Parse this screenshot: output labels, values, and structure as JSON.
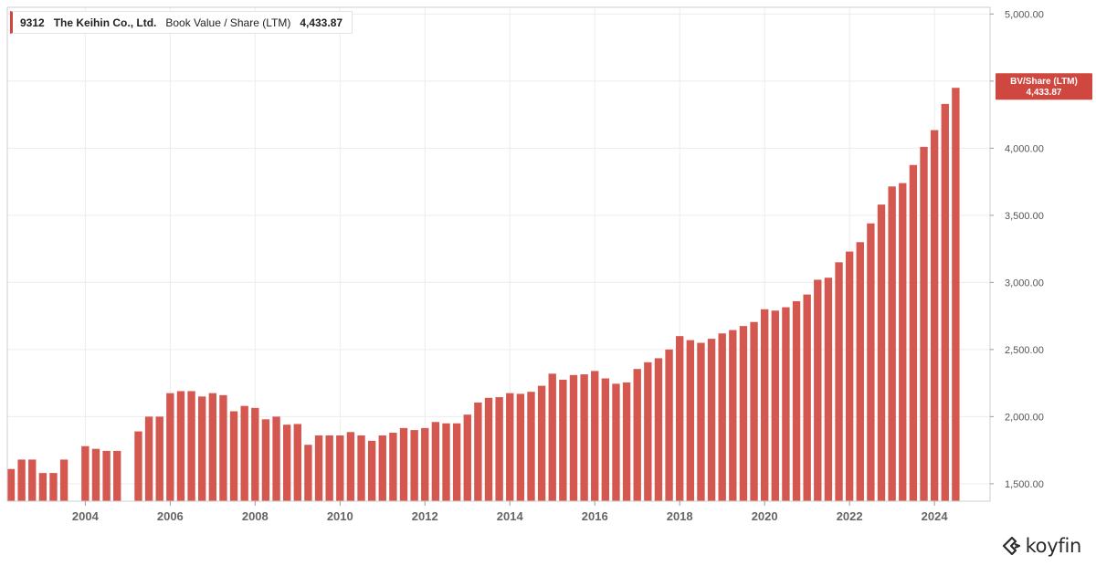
{
  "legend": {
    "ticker": "9312",
    "company": "The Keihin Co., Ltd.",
    "metric": "Book Value / Share (LTM)",
    "value": "4,433.87"
  },
  "last_value_tag": {
    "label": "BV/Share (LTM)",
    "value": "4,433.87"
  },
  "brand": {
    "name": "koyfin"
  },
  "colors": {
    "bar": "#d45850",
    "tag": "#d0473f",
    "grid": "#ececec"
  },
  "chart_data": {
    "type": "bar",
    "title": "",
    "xlabel": "",
    "ylabel": "",
    "ylim": [
      1370,
      5050
    ],
    "xlim": [
      2002.25,
      2024.75
    ],
    "grid": true,
    "x_ticks": [
      "2004",
      "2006",
      "2008",
      "2010",
      "2012",
      "2014",
      "2016",
      "2018",
      "2020",
      "2022",
      "2024"
    ],
    "y_ticks": [
      "1,500.00",
      "2,000.00",
      "2,500.00",
      "3,000.00",
      "3,500.00",
      "4,000.00",
      "4,500.00",
      "5,000.00"
    ],
    "series": [
      {
        "name": "BV/Share (LTM)",
        "x": [
          2002.25,
          2002.5,
          2002.75,
          2003.0,
          2003.25,
          2003.5,
          2003.75,
          2004.0,
          2004.25,
          2004.5,
          2004.75,
          2005.0,
          2005.25,
          2005.5,
          2005.75,
          2006.0,
          2006.25,
          2006.5,
          2006.75,
          2007.0,
          2007.25,
          2007.5,
          2007.75,
          2008.0,
          2008.25,
          2008.5,
          2008.75,
          2009.0,
          2009.25,
          2009.5,
          2009.75,
          2010.0,
          2010.25,
          2010.5,
          2010.75,
          2011.0,
          2011.25,
          2011.5,
          2011.75,
          2012.0,
          2012.25,
          2012.5,
          2012.75,
          2013.0,
          2013.25,
          2013.5,
          2013.75,
          2014.0,
          2014.25,
          2014.5,
          2014.75,
          2015.0,
          2015.25,
          2015.5,
          2015.75,
          2016.0,
          2016.25,
          2016.5,
          2016.75,
          2017.0,
          2017.25,
          2017.5,
          2017.75,
          2018.0,
          2018.25,
          2018.5,
          2018.75,
          2019.0,
          2019.25,
          2019.5,
          2019.75,
          2020.0,
          2020.25,
          2020.5,
          2020.75,
          2021.0,
          2021.25,
          2021.5,
          2021.75,
          2022.0,
          2022.25,
          2022.5,
          2022.75,
          2023.0,
          2023.25,
          2023.5,
          2023.75,
          2024.0,
          2024.25,
          2024.5
        ],
        "values": [
          1610,
          1680,
          1680,
          1580,
          1580,
          1680,
          null,
          1780,
          1760,
          1745,
          1745,
          null,
          1890,
          2000,
          2000,
          2175,
          2190,
          2190,
          2150,
          2175,
          2160,
          2040,
          2080,
          2065,
          1980,
          2000,
          1940,
          1945,
          1790,
          1860,
          1860,
          1860,
          1885,
          1860,
          1820,
          1860,
          1880,
          1915,
          1900,
          1915,
          1960,
          1950,
          1950,
          2015,
          2105,
          2140,
          2145,
          2175,
          2170,
          2185,
          2230,
          2320,
          2275,
          2310,
          2315,
          2340,
          2285,
          2245,
          2255,
          2355,
          2405,
          2435,
          2500,
          2600,
          2570,
          2550,
          2580,
          2620,
          2645,
          2675,
          2705,
          2800,
          2790,
          2815,
          2860,
          2910,
          3020,
          3035,
          3150,
          3230,
          3300,
          3440,
          3580,
          3715,
          3740,
          3875,
          4010,
          4135,
          4330,
          4450
        ]
      }
    ]
  }
}
